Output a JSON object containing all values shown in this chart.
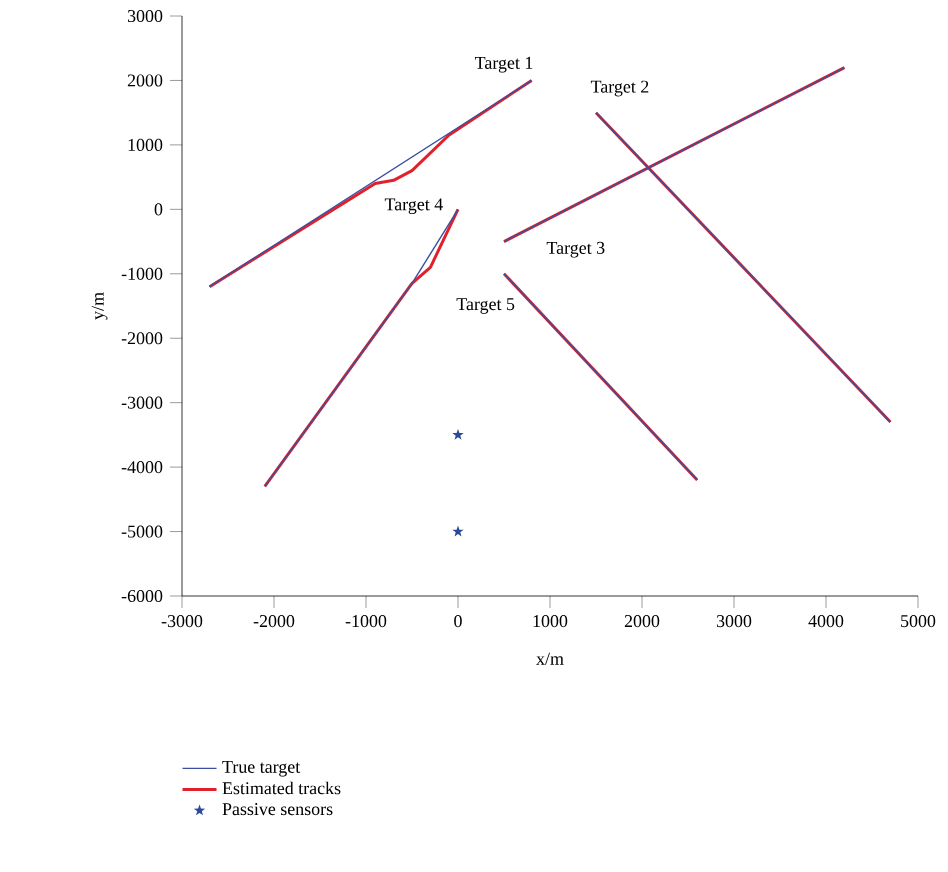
{
  "chart_data": {
    "type": "line",
    "xlabel": "x/m",
    "ylabel": "y/m",
    "xlim": [
      -3000,
      5000
    ],
    "ylim": [
      -6000,
      3000
    ],
    "xticks": [
      -3000,
      -2000,
      -1000,
      0,
      1000,
      2000,
      3000,
      4000,
      5000
    ],
    "yticks": [
      -6000,
      -5000,
      -4000,
      -3000,
      -2000,
      -1000,
      0,
      1000,
      2000,
      3000
    ],
    "grid": false,
    "legend": "bottom",
    "line_style": "solid",
    "series": [
      {
        "name": "True target",
        "color": "#3a4fa0",
        "marker": "none",
        "x": [
          -2700,
          800,
          null,
          1500,
          4700,
          null,
          500,
          4200,
          null,
          0,
          -500,
          -2100,
          null,
          500,
          2600
        ],
        "values": [
          -1200,
          2000,
          null,
          1500,
          -3300,
          null,
          -500,
          2200,
          null,
          0,
          -1150,
          -4300,
          null,
          -1000,
          -4200
        ]
      },
      {
        "name": "Estimated tracks",
        "color": "#e0202a",
        "marker": "none",
        "x": [
          -2700,
          -900,
          -700,
          -500,
          -100,
          800,
          null,
          1500,
          4700,
          null,
          500,
          4200,
          null,
          0,
          -300,
          -500,
          -2100,
          null,
          500,
          2600
        ],
        "values": [
          -1200,
          400,
          450,
          600,
          1150,
          2000,
          null,
          1500,
          -3300,
          null,
          -500,
          2200,
          null,
          0,
          -900,
          -1150,
          -4300,
          null,
          -1000,
          -4200
        ]
      },
      {
        "name": "Passive sensors",
        "type": "scatter",
        "color": "#2a4a9a",
        "marker": "star",
        "x": [
          0,
          0
        ],
        "values": [
          -3500,
          -5000
        ]
      }
    ],
    "annotations": [
      "Target 1",
      "Target 2",
      "Target 3",
      "Target 4",
      "Target 5"
    ]
  }
}
